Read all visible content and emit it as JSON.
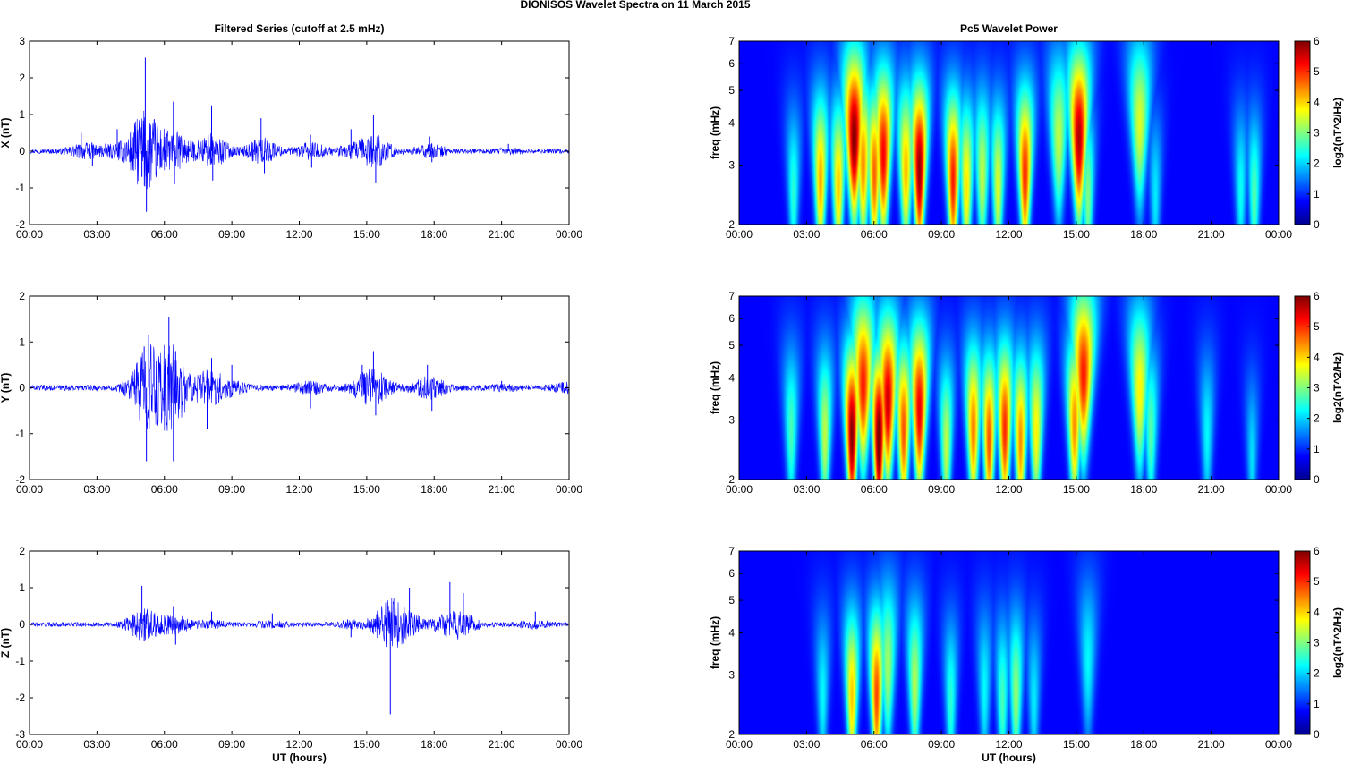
{
  "figure": {
    "title": "DIONISOS Wavelet Spectra on 11 March     2015"
  },
  "chart_data": [
    {
      "type": "line",
      "title": "Filtered Series (cutoff at 2.5 mHz)",
      "ylabel": "X (nT)",
      "xlabel": "",
      "xlim": [
        0,
        24
      ],
      "ylim": [
        -2,
        3
      ],
      "yticks": [
        "-2",
        "-1",
        "0",
        "1",
        "2",
        "3"
      ],
      "xticks": [
        "00:00",
        "03:00",
        "06:00",
        "09:00",
        "12:00",
        "15:00",
        "18:00",
        "21:00",
        "00:00"
      ],
      "color": "#0000ff",
      "series": [
        {
          "x": [
            0,
            2.3,
            2.8,
            3.9,
            5.0,
            5.15,
            5.2,
            6.4,
            6.45,
            8.1,
            8.15,
            10.3,
            10.45,
            12.5,
            12.55,
            14.3,
            15.3,
            15.4,
            17.8,
            17.9,
            21.3,
            24
          ],
          "values": [
            0,
            0.5,
            -0.4,
            0.6,
            -0.7,
            2.55,
            -1.65,
            1.35,
            -0.9,
            1.25,
            -0.8,
            0.9,
            -0.6,
            0.45,
            -0.45,
            0.6,
            1.0,
            -0.85,
            0.4,
            -0.3,
            0.2,
            0
          ]
        }
      ]
    },
    {
      "type": "line",
      "title": "",
      "ylabel": "Y (nT)",
      "xlabel": "",
      "xlim": [
        0,
        24
      ],
      "ylim": [
        -2,
        2
      ],
      "yticks": [
        "-2",
        "-1",
        "0",
        "1",
        "2"
      ],
      "xticks": [
        "00:00",
        "03:00",
        "06:00",
        "09:00",
        "12:00",
        "15:00",
        "18:00",
        "21:00",
        "00:00"
      ],
      "color": "#0000ff",
      "series": [
        {
          "x": [
            0,
            5.1,
            5.2,
            5.3,
            6.2,
            6.4,
            6.5,
            7.9,
            8.1,
            9.0,
            12.5,
            14.8,
            15.3,
            15.4,
            17.7,
            17.9,
            21.0,
            24
          ],
          "values": [
            0,
            0.9,
            -1.6,
            1.15,
            1.55,
            -1.6,
            0.8,
            -0.9,
            0.65,
            0.5,
            -0.45,
            0.5,
            0.8,
            -0.6,
            0.5,
            -0.5,
            0.15,
            -0.4
          ]
        }
      ]
    },
    {
      "type": "line",
      "title": "",
      "ylabel": "Z (nT)",
      "xlabel": "UT (hours)",
      "xlim": [
        0,
        24
      ],
      "ylim": [
        -3,
        2
      ],
      "yticks": [
        "-3",
        "-2",
        "-1",
        "0",
        "1",
        "2"
      ],
      "xticks": [
        "00:00",
        "03:00",
        "06:00",
        "09:00",
        "12:00",
        "15:00",
        "18:00",
        "21:00",
        "00:00"
      ],
      "color": "#0000ff",
      "series": [
        {
          "x": [
            0,
            5.0,
            5.1,
            5.2,
            6.4,
            6.5,
            8.1,
            10.8,
            14.3,
            16.0,
            16.05,
            16.1,
            16.9,
            18.7,
            19.3,
            22.5,
            24
          ],
          "values": [
            0,
            1.05,
            -0.45,
            0.3,
            0.5,
            -0.55,
            0.35,
            0.3,
            -0.35,
            -0.25,
            -2.45,
            0.25,
            1.0,
            1.15,
            0.85,
            0.35,
            0
          ]
        }
      ]
    },
    {
      "type": "heatmap",
      "title": "Pc5 Wavelet Power",
      "ylabel": "freq (mHz)",
      "xlabel": "",
      "xlim": [
        0,
        24
      ],
      "ylim": [
        2,
        7
      ],
      "yscale": "log",
      "yticks": [
        "2",
        "3",
        "4",
        "5",
        "6",
        "7"
      ],
      "xticks": [
        "00:00",
        "03:00",
        "06:00",
        "09:00",
        "12:00",
        "15:00",
        "18:00",
        "21:00",
        "00:00"
      ],
      "colorbar": {
        "label": "log2(nT^2/Hz)",
        "ticks": [
          "0",
          "1",
          "2",
          "3",
          "4",
          "5",
          "6"
        ],
        "range": [
          0,
          6
        ],
        "colormap": "jet"
      },
      "blobs": [
        {
          "t": 2.4,
          "f": 2.5,
          "pw": 2.0
        },
        {
          "t": 3.6,
          "f": 2.7,
          "pw": 4.0
        },
        {
          "t": 4.4,
          "f": 2.6,
          "pw": 3.8
        },
        {
          "t": 5.1,
          "f": 3.6,
          "pw": 6.0
        },
        {
          "t": 5.5,
          "f": 3.0,
          "pw": 4.2
        },
        {
          "t": 6.0,
          "f": 2.8,
          "pw": 4.5
        },
        {
          "t": 6.4,
          "f": 3.2,
          "pw": 5.2
        },
        {
          "t": 7.4,
          "f": 2.9,
          "pw": 3.9
        },
        {
          "t": 8.0,
          "f": 2.9,
          "pw": 5.9
        },
        {
          "t": 9.5,
          "f": 2.7,
          "pw": 5.0
        },
        {
          "t": 10.1,
          "f": 2.6,
          "pw": 3.6
        },
        {
          "t": 10.8,
          "f": 2.8,
          "pw": 3.0
        },
        {
          "t": 11.5,
          "f": 2.6,
          "pw": 3.2
        },
        {
          "t": 12.7,
          "f": 2.8,
          "pw": 4.9
        },
        {
          "t": 14.2,
          "f": 3.6,
          "pw": 3.0
        },
        {
          "t": 15.1,
          "f": 3.6,
          "pw": 5.7
        },
        {
          "t": 15.5,
          "f": 2.4,
          "pw": 2.6
        },
        {
          "t": 17.8,
          "f": 4.0,
          "pw": 3.2
        },
        {
          "t": 18.5,
          "f": 2.4,
          "pw": 1.6
        },
        {
          "t": 22.3,
          "f": 2.5,
          "pw": 1.8
        },
        {
          "t": 22.9,
          "f": 2.4,
          "pw": 2.3
        }
      ]
    },
    {
      "type": "heatmap",
      "title": "",
      "ylabel": "freq (mHz)",
      "xlabel": "",
      "xlim": [
        0,
        24
      ],
      "ylim": [
        2,
        7
      ],
      "yscale": "log",
      "yticks": [
        "2",
        "3",
        "4",
        "5",
        "6",
        "7"
      ],
      "xticks": [
        "00:00",
        "03:00",
        "06:00",
        "09:00",
        "12:00",
        "15:00",
        "18:00",
        "21:00",
        "00:00"
      ],
      "colorbar": {
        "label": "log2(nT^2/Hz)",
        "ticks": [
          "0",
          "1",
          "2",
          "3",
          "4",
          "5",
          "6"
        ],
        "range": [
          0,
          6
        ],
        "colormap": "jet"
      },
      "blobs": [
        {
          "t": 2.3,
          "f": 2.8,
          "pw": 2.2
        },
        {
          "t": 3.8,
          "f": 2.7,
          "pw": 3.0
        },
        {
          "t": 5.0,
          "f": 2.7,
          "pw": 6.0
        },
        {
          "t": 5.5,
          "f": 3.8,
          "pw": 5.0
        },
        {
          "t": 6.2,
          "f": 2.6,
          "pw": 6.3
        },
        {
          "t": 6.6,
          "f": 3.4,
          "pw": 5.5
        },
        {
          "t": 7.3,
          "f": 2.8,
          "pw": 4.6
        },
        {
          "t": 8.0,
          "f": 3.2,
          "pw": 5.3
        },
        {
          "t": 9.2,
          "f": 2.5,
          "pw": 3.0
        },
        {
          "t": 10.4,
          "f": 2.8,
          "pw": 4.3
        },
        {
          "t": 11.1,
          "f": 2.6,
          "pw": 4.6
        },
        {
          "t": 11.8,
          "f": 2.8,
          "pw": 4.9
        },
        {
          "t": 12.5,
          "f": 2.6,
          "pw": 4.2
        },
        {
          "t": 13.2,
          "f": 2.8,
          "pw": 3.5
        },
        {
          "t": 14.9,
          "f": 2.9,
          "pw": 4.2
        },
        {
          "t": 15.3,
          "f": 4.1,
          "pw": 5.0
        },
        {
          "t": 17.8,
          "f": 3.7,
          "pw": 3.5
        },
        {
          "t": 18.3,
          "f": 2.8,
          "pw": 2.3
        },
        {
          "t": 20.8,
          "f": 2.7,
          "pw": 1.7
        },
        {
          "t": 22.8,
          "f": 2.3,
          "pw": 1.5
        }
      ]
    },
    {
      "type": "heatmap",
      "title": "",
      "ylabel": "freq (mHz)",
      "xlabel": "UT (hours)",
      "xlim": [
        0,
        24
      ],
      "ylim": [
        2,
        7
      ],
      "yscale": "log",
      "yticks": [
        "2",
        "3",
        "4",
        "5",
        "6",
        "7"
      ],
      "xticks": [
        "00:00",
        "03:00",
        "06:00",
        "09:00",
        "12:00",
        "15:00",
        "18:00",
        "21:00",
        "00:00"
      ],
      "colorbar": {
        "label": "log2(nT^2/Hz)",
        "ticks": [
          "0",
          "1",
          "2",
          "3",
          "4",
          "5",
          "6"
        ],
        "range": [
          0,
          6
        ],
        "colormap": "jet"
      },
      "blobs": [
        {
          "t": 3.7,
          "f": 2.6,
          "pw": 1.7
        },
        {
          "t": 5.0,
          "f": 2.6,
          "pw": 3.8
        },
        {
          "t": 6.1,
          "f": 2.6,
          "pw": 4.7
        },
        {
          "t": 6.6,
          "f": 3.2,
          "pw": 2.8
        },
        {
          "t": 7.8,
          "f": 2.8,
          "pw": 2.9
        },
        {
          "t": 9.4,
          "f": 2.5,
          "pw": 2.0
        },
        {
          "t": 10.9,
          "f": 2.7,
          "pw": 1.7
        },
        {
          "t": 11.7,
          "f": 2.5,
          "pw": 2.2
        },
        {
          "t": 12.3,
          "f": 2.6,
          "pw": 2.7
        },
        {
          "t": 13.1,
          "f": 2.5,
          "pw": 1.6
        },
        {
          "t": 15.5,
          "f": 3.3,
          "pw": 1.7
        }
      ]
    }
  ]
}
